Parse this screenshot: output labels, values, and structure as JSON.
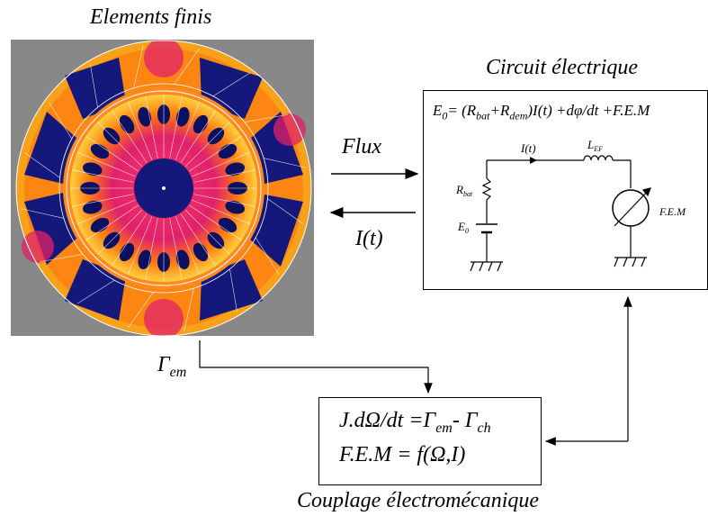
{
  "titles": {
    "fem": "Elements finis",
    "circuit": "Circuit électrique",
    "coupling": "Couplage électromécanique"
  },
  "arrows": {
    "flux": "Flux",
    "current": "I(t)",
    "torque_main": "Γ",
    "torque_sub": "em"
  },
  "circuit": {
    "equation": {
      "e0": "E",
      "e0_sub": "0",
      "eq_open": "= (R",
      "bat_sub": "bat",
      "plus_r": "+R",
      "dem_sub": "dem",
      "rest": ")I(t) +dφ/dt +F.E.M"
    },
    "current_label": "I(t)",
    "inductor_main": "L",
    "inductor_sub": "EF",
    "resistor_main": "R",
    "resistor_sub": "bat",
    "source_main": "E",
    "source_sub": "0",
    "fem_label": "F.E.M"
  },
  "coupling": {
    "line1_a": "J.dΩ/dt =Γ",
    "line1_sub1": "em",
    "line1_b": "- Γ",
    "line1_sub2": "ch",
    "line2": "F.E.M = f(Ω,I)"
  },
  "colors": {
    "background_panel": "#888888",
    "stator_outer": "#f7a21a",
    "hot": "#ff3d10",
    "magenta": "#e0206a",
    "dark_blue": "#14187a",
    "slot_fill": "#0c1060"
  }
}
